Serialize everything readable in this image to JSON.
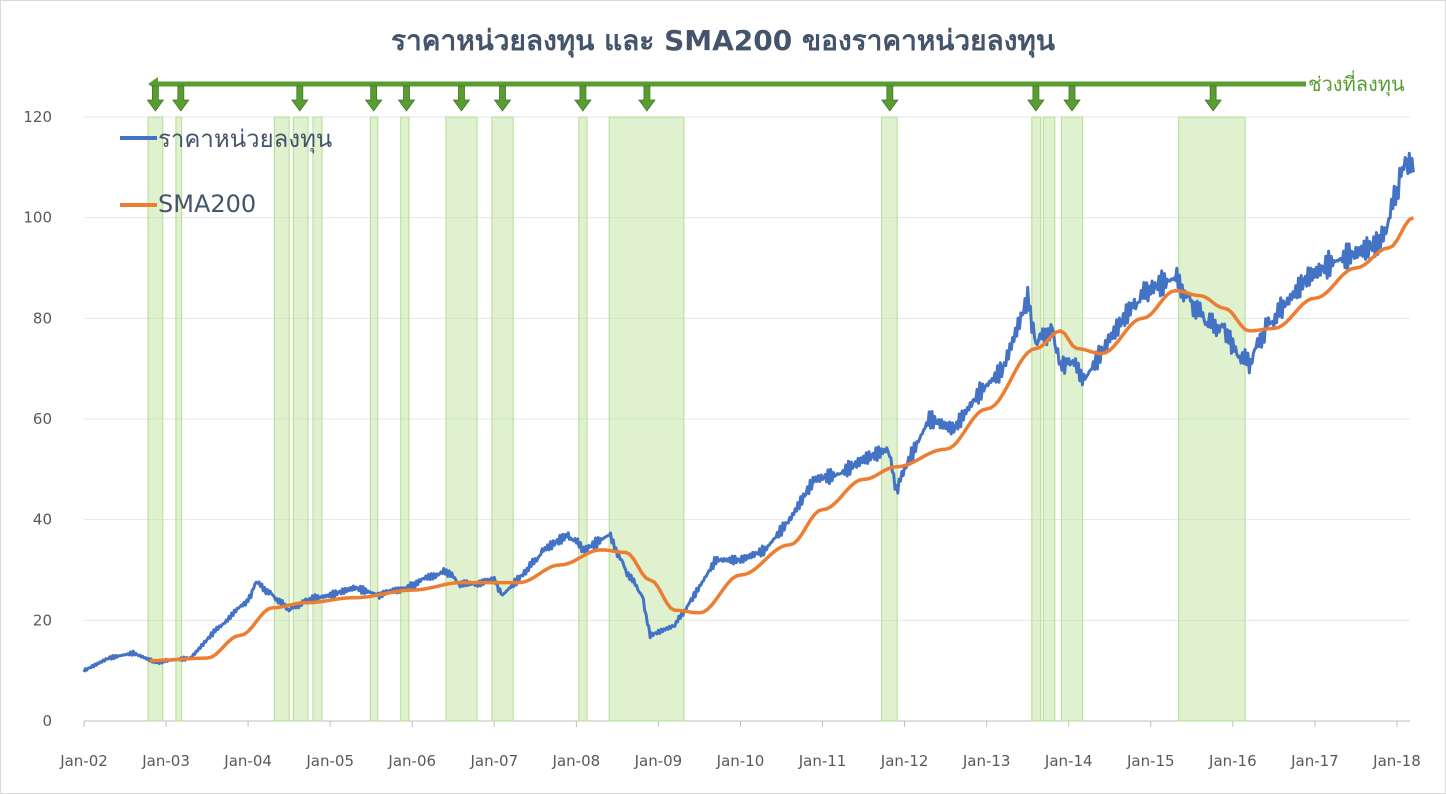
{
  "chart_data": {
    "type": "line",
    "title": "ราคาหน่วยลงทุน และ SMA200 ของราคาหน่วยลงทุน",
    "xlabel": "",
    "ylabel": "",
    "xlim": [
      2002.0,
      2018.0
    ],
    "ylim": [
      0,
      120
    ],
    "y_ticks": [
      "0",
      "20",
      "40",
      "60",
      "80",
      "100",
      "120"
    ],
    "x_ticks": [
      "Jan-02",
      "Jan-03",
      "Jan-04",
      "Jan-05",
      "Jan-06",
      "Jan-07",
      "Jan-08",
      "Jan-09",
      "Jan-10",
      "Jan-11",
      "Jan-12",
      "Jan-13",
      "Jan-14",
      "Jan-15",
      "Jan-16",
      "Jan-17",
      "Jan-18"
    ],
    "grid": true,
    "legend_position": "top-left",
    "series": [
      {
        "name": "ราคาหน่วยลงทุน",
        "color": "#4472C4",
        "points": [
          [
            2002.0,
            10
          ],
          [
            2002.3,
            12.5
          ],
          [
            2002.6,
            13.5
          ],
          [
            2002.9,
            11.5
          ],
          [
            2003.0,
            12
          ],
          [
            2003.3,
            12.5
          ],
          [
            2003.6,
            18
          ],
          [
            2004.0,
            24
          ],
          [
            2004.1,
            27.5
          ],
          [
            2004.3,
            25
          ],
          [
            2004.5,
            22
          ],
          [
            2004.7,
            24
          ],
          [
            2005.0,
            25
          ],
          [
            2005.3,
            26.5
          ],
          [
            2005.6,
            25
          ],
          [
            2006.0,
            27
          ],
          [
            2006.4,
            30
          ],
          [
            2006.6,
            27
          ],
          [
            2007.0,
            28
          ],
          [
            2007.1,
            25
          ],
          [
            2007.4,
            30
          ],
          [
            2007.6,
            34
          ],
          [
            2007.9,
            37
          ],
          [
            2008.1,
            34
          ],
          [
            2008.4,
            37
          ],
          [
            2008.6,
            30
          ],
          [
            2008.8,
            25
          ],
          [
            2008.9,
            17
          ],
          [
            2009.2,
            19
          ],
          [
            2009.4,
            24
          ],
          [
            2009.7,
            32
          ],
          [
            2010.0,
            32
          ],
          [
            2010.3,
            34
          ],
          [
            2010.6,
            40
          ],
          [
            2010.9,
            48
          ],
          [
            2011.2,
            49
          ],
          [
            2011.5,
            52
          ],
          [
            2011.8,
            54
          ],
          [
            2011.9,
            46
          ],
          [
            2012.0,
            50
          ],
          [
            2012.3,
            60
          ],
          [
            2012.6,
            58
          ],
          [
            2012.9,
            65
          ],
          [
            2013.2,
            70
          ],
          [
            2013.5,
            84
          ],
          [
            2013.6,
            75
          ],
          [
            2013.8,
            78
          ],
          [
            2013.9,
            70
          ],
          [
            2014.0,
            72
          ],
          [
            2014.2,
            68
          ],
          [
            2014.5,
            76
          ],
          [
            2014.8,
            83
          ],
          [
            2015.0,
            86
          ],
          [
            2015.3,
            88
          ],
          [
            2015.5,
            83
          ],
          [
            2015.7,
            79
          ],
          [
            2015.9,
            78
          ],
          [
            2016.0,
            74
          ],
          [
            2016.2,
            71
          ],
          [
            2016.4,
            78
          ],
          [
            2016.6,
            82
          ],
          [
            2016.9,
            88
          ],
          [
            2017.2,
            91
          ],
          [
            2017.5,
            93
          ],
          [
            2017.8,
            95
          ],
          [
            2018.0,
            105
          ],
          [
            2018.1,
            112
          ],
          [
            2018.2,
            109
          ]
        ]
      },
      {
        "name": "SMA200",
        "color": "#ED7D31",
        "points": [
          [
            2002.8,
            12
          ],
          [
            2003.5,
            12.5
          ],
          [
            2003.9,
            17
          ],
          [
            2004.3,
            22.5
          ],
          [
            2004.7,
            23.5
          ],
          [
            2005.3,
            24.5
          ],
          [
            2006.0,
            26
          ],
          [
            2006.6,
            27.5
          ],
          [
            2007.3,
            27.5
          ],
          [
            2007.8,
            31
          ],
          [
            2008.3,
            34
          ],
          [
            2008.6,
            33.5
          ],
          [
            2008.9,
            28
          ],
          [
            2009.2,
            22
          ],
          [
            2009.5,
            21.5
          ],
          [
            2010.0,
            29
          ],
          [
            2010.6,
            35
          ],
          [
            2011.0,
            42
          ],
          [
            2011.5,
            48
          ],
          [
            2011.9,
            50.5
          ],
          [
            2012.5,
            54
          ],
          [
            2013.0,
            62
          ],
          [
            2013.6,
            74
          ],
          [
            2013.9,
            77.5
          ],
          [
            2014.1,
            74
          ],
          [
            2014.4,
            73
          ],
          [
            2014.9,
            80
          ],
          [
            2015.3,
            85.5
          ],
          [
            2015.6,
            84.5
          ],
          [
            2015.9,
            82
          ],
          [
            2016.2,
            77.5
          ],
          [
            2016.5,
            78
          ],
          [
            2017.0,
            84
          ],
          [
            2017.5,
            90
          ],
          [
            2017.9,
            94
          ],
          [
            2018.2,
            100
          ]
        ]
      }
    ],
    "shaded_periods": [
      [
        2002.78,
        2002.96
      ],
      [
        2003.12,
        2003.19
      ],
      [
        2004.32,
        2004.5
      ],
      [
        2004.55,
        2004.73
      ],
      [
        2004.79,
        2004.9
      ],
      [
        2005.49,
        2005.58
      ],
      [
        2005.86,
        2005.96
      ],
      [
        2006.41,
        2006.79
      ],
      [
        2006.97,
        2007.23
      ],
      [
        2008.03,
        2008.13
      ],
      [
        2008.4,
        2009.31
      ],
      [
        2011.72,
        2011.91
      ],
      [
        2013.55,
        2013.66
      ],
      [
        2013.69,
        2013.83
      ],
      [
        2013.91,
        2014.17
      ],
      [
        2015.34,
        2016.15
      ]
    ],
    "shade_color": "#C5E5A5",
    "annotation": {
      "label": "ช่วงที่ลงทุน",
      "color": "#5A9B32",
      "arrow_years": [
        2002.87,
        2003.18,
        2004.63,
        2005.53,
        2005.93,
        2006.6,
        2007.1,
        2008.08,
        2008.86,
        2011.82,
        2013.6,
        2014.04,
        2015.76
      ]
    }
  }
}
